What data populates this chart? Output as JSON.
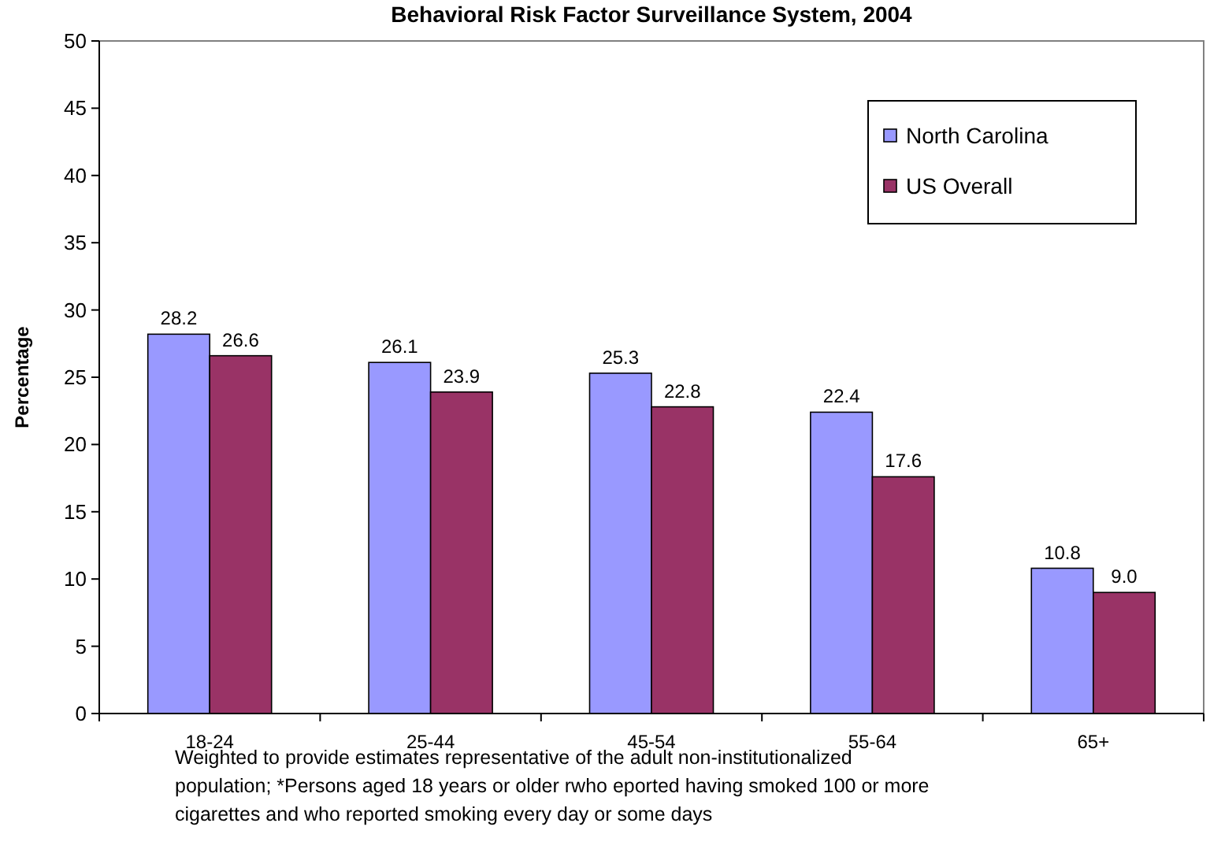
{
  "chart_data": {
    "type": "bar",
    "title": "Behavioral Risk Factor Surveillance System, 2004",
    "ylabel": "Percentage",
    "categories": [
      "18-24",
      "25-44",
      "45-54",
      "55-64",
      "65+"
    ],
    "series": [
      {
        "name": "North Carolina",
        "color": "#9999ff",
        "values": [
          28.2,
          26.1,
          25.3,
          22.4,
          10.8
        ],
        "value_labels": [
          "28.2",
          "26.1",
          "25.3",
          "22.4",
          "10.8"
        ]
      },
      {
        "name": "US Overall",
        "color": "#993366",
        "values": [
          26.6,
          23.9,
          22.8,
          17.6,
          9.0
        ],
        "value_labels": [
          "26.6",
          "23.9",
          "22.8",
          "17.6",
          "9.0"
        ]
      }
    ],
    "ylim": [
      0,
      50
    ],
    "yticks": [
      0,
      5,
      10,
      15,
      20,
      25,
      30,
      35,
      40,
      45,
      50
    ],
    "grid": false,
    "legend": "top right",
    "annotations": [
      "Weighted to provide estimates representative of the adult non-institutionalized population; *Persons aged 18 years or older rwho eported having smoked 100 or more cigarettes and who reported smoking every day or some days"
    ]
  }
}
